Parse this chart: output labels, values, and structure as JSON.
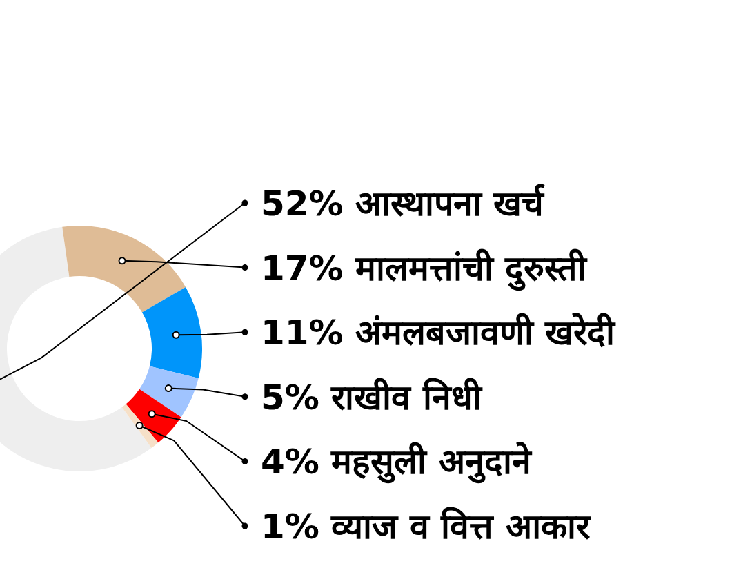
{
  "chart_data": {
    "type": "donut",
    "categories": [
      "आस्थापना खर्च",
      "मालमत्तांची दुरुस्ती",
      "अंमलबजावणी खरेदी",
      "राखीव निधी",
      "महसुली अनुदाने",
      "व्याज व वित्त आकार"
    ],
    "values": [
      52,
      17,
      11,
      5,
      4,
      1
    ],
    "value_labels": [
      "52%",
      "17%",
      "11%",
      "5%",
      "4%",
      "1%"
    ],
    "colors": [
      "#eeeeee",
      "#dfbc96",
      "#0095fa",
      "#a0c4ff",
      "#fe0000",
      "#f6e0c8"
    ]
  }
}
